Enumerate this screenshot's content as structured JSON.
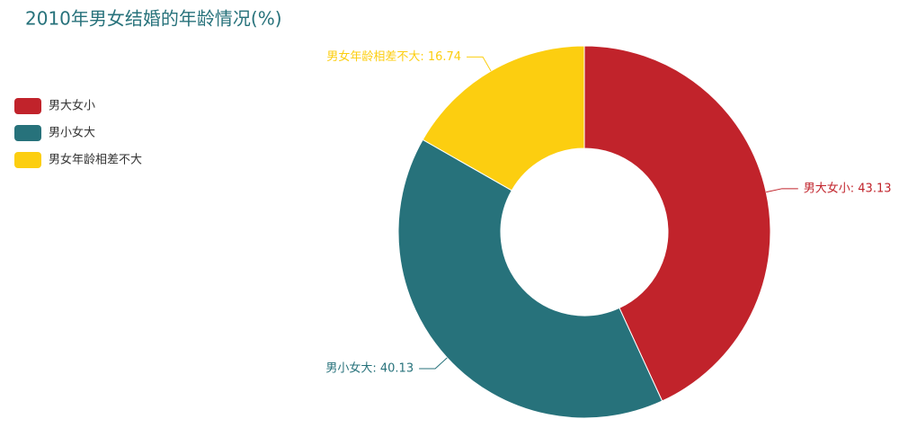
{
  "chart_data": {
    "type": "pie",
    "title": "2010年男女结婚的年龄情况(%)",
    "categories": [
      "男大女小",
      "男小女大",
      "男女年龄相差不大"
    ],
    "values": [
      43.13,
      40.13,
      16.74
    ],
    "value_labels": [
      "男大女小: 43.13",
      "男小女大: 40.13",
      "男女年龄相差不大: 16.74"
    ],
    "colors": [
      "#c1232b",
      "#27727b",
      "#fcce10"
    ],
    "donut": true,
    "legend": "left"
  }
}
